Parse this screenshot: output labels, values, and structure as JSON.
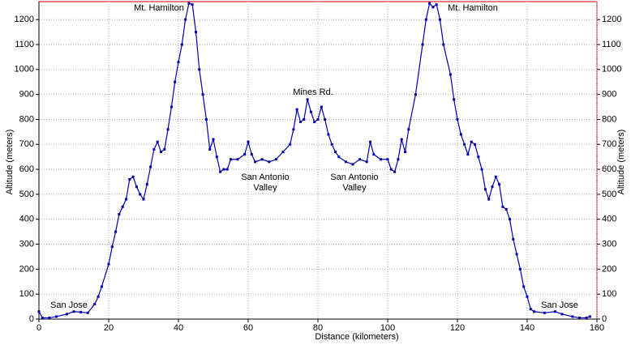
{
  "chart_data": {
    "type": "line",
    "xlabel": "Distance (kilometers)",
    "ylabel": "Altitude (meters)",
    "y2label": "Altitude (meters)",
    "x": [
      0,
      1,
      3,
      5,
      8,
      10,
      12,
      14,
      16,
      17,
      18,
      20,
      21,
      22,
      23,
      24,
      25,
      26,
      27,
      28,
      29,
      30,
      31,
      32,
      33,
      34,
      35,
      36,
      37,
      38,
      39,
      40,
      41,
      42,
      43,
      44,
      45,
      46,
      47,
      48,
      49,
      50,
      51,
      52,
      53,
      54,
      55,
      57,
      59,
      60,
      61,
      62,
      64,
      66,
      68,
      70,
      72,
      73,
      74,
      75,
      76,
      77,
      78,
      79,
      80,
      81,
      82,
      83,
      84,
      85,
      86,
      88,
      90,
      92,
      94,
      95,
      96,
      98,
      100,
      101,
      102,
      103,
      104,
      105,
      106,
      108,
      110,
      111,
      112,
      113,
      114,
      115,
      116,
      118,
      119,
      120,
      121,
      122,
      123,
      124,
      125,
      126,
      127,
      128,
      129,
      130,
      131,
      132,
      133,
      134,
      135,
      136,
      137,
      138,
      139,
      140,
      141,
      142,
      145,
      148,
      150,
      153,
      155,
      157,
      158
    ],
    "series": [
      {
        "name": "Altitude",
        "color": "#0000b0",
        "values": [
          30,
          5,
          5,
          10,
          20,
          30,
          28,
          25,
          60,
          90,
          130,
          220,
          290,
          350,
          420,
          450,
          480,
          560,
          570,
          530,
          500,
          480,
          540,
          610,
          680,
          710,
          670,
          680,
          760,
          850,
          950,
          1030,
          1100,
          1200,
          1265,
          1260,
          1150,
          1000,
          900,
          800,
          680,
          720,
          650,
          590,
          600,
          600,
          640,
          640,
          660,
          710,
          660,
          630,
          640,
          630,
          640,
          670,
          700,
          760,
          840,
          790,
          800,
          880,
          830,
          790,
          800,
          850,
          800,
          740,
          700,
          670,
          650,
          630,
          620,
          640,
          630,
          710,
          660,
          640,
          640,
          600,
          590,
          640,
          720,
          670,
          760,
          900,
          1100,
          1200,
          1265,
          1250,
          1260,
          1200,
          1100,
          980,
          880,
          800,
          740,
          700,
          660,
          710,
          700,
          650,
          600,
          520,
          480,
          530,
          570,
          540,
          450,
          440,
          400,
          320,
          260,
          200,
          130,
          90,
          40,
          30,
          25,
          30,
          20,
          10,
          5,
          5,
          10
        ]
      }
    ],
    "xlim": [
      0,
      160
    ],
    "xticks": [
      0,
      20,
      40,
      60,
      80,
      100,
      120,
      140,
      160
    ],
    "ylim": [
      0,
      1272
    ],
    "yticks": [
      0,
      100,
      200,
      300,
      400,
      500,
      600,
      700,
      800,
      900,
      1000,
      1100,
      1200
    ],
    "y2lim": [
      0,
      1272
    ],
    "y2ticks": [
      0,
      100,
      200,
      300,
      400,
      500,
      600,
      700,
      800,
      900,
      1000,
      1100,
      1200
    ],
    "grid": true,
    "annotations": [
      [
        "Mt. Hamilton"
      ],
      [
        "Mt. Hamilton"
      ],
      [
        "Mines Rd."
      ],
      [
        "San Antonio",
        "Valley"
      ],
      [
        "San Antonio",
        "Valley"
      ],
      [
        "San Jose"
      ],
      [
        "San Jose"
      ]
    ]
  }
}
